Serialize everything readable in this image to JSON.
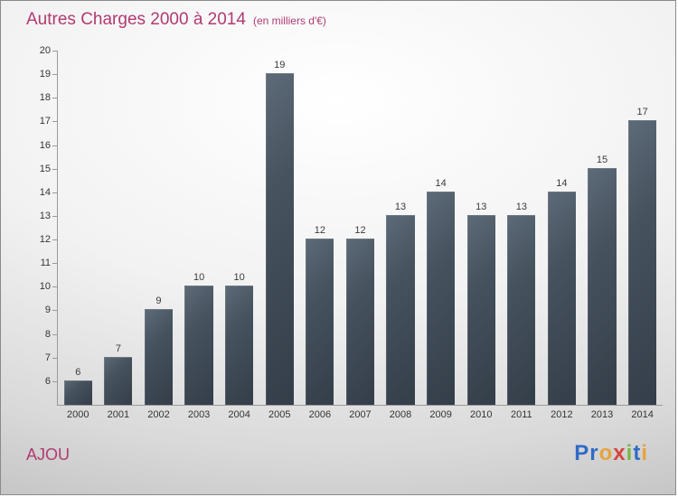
{
  "header": {
    "title": "Autres Charges 2000 à 2014",
    "subtitle": "(en milliers d'€)"
  },
  "footer": {
    "company": "AJOU",
    "brand": {
      "name": "Proxiti",
      "letters": [
        {
          "ch": "P",
          "color": "#2f6bc6"
        },
        {
          "ch": "r",
          "color": "#2f6bc6"
        },
        {
          "ch": "o",
          "color": "#e8a33d"
        },
        {
          "ch": "x",
          "color": "#d64541"
        },
        {
          "ch": "i",
          "color": "#7ab648"
        },
        {
          "ch": "t",
          "color": "#2f6bc6"
        },
        {
          "ch": "i",
          "color": "#e8a33d"
        }
      ]
    }
  },
  "colors": {
    "title_pink": "#b03a72",
    "bar_dark_slate": "#46525e",
    "axis_gray": "#9a9a9a"
  },
  "chart_data": {
    "type": "bar",
    "title": "Autres Charges 2000 à 2014",
    "subtitle": "(en milliers d'€)",
    "categories": [
      "2000",
      "2001",
      "2002",
      "2003",
      "2004",
      "2005",
      "2006",
      "2007",
      "2008",
      "2009",
      "2010",
      "2011",
      "2012",
      "2013",
      "2014"
    ],
    "values": [
      6,
      7,
      9,
      10,
      10,
      19,
      12,
      12,
      13,
      14,
      13,
      13,
      14,
      15,
      17
    ],
    "xlabel": "",
    "ylabel": "",
    "ylim": [
      5,
      20
    ],
    "yticks": [
      6,
      7,
      8,
      9,
      10,
      11,
      12,
      13,
      14,
      15,
      16,
      17,
      18,
      19,
      20
    ],
    "grid": false,
    "legend": false,
    "value_labels": true
  }
}
